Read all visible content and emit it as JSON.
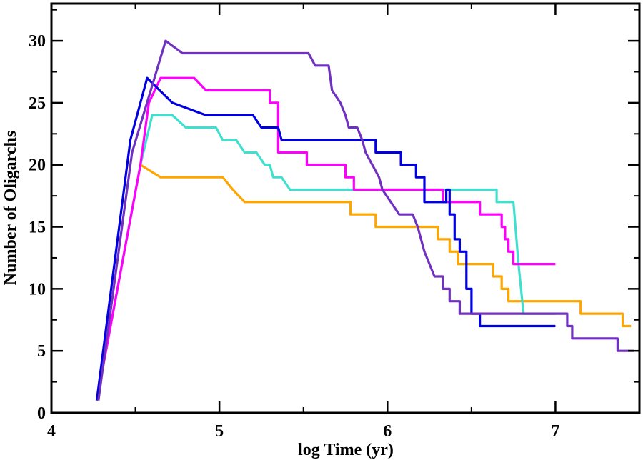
{
  "chart_data": {
    "type": "line",
    "title": "",
    "xlabel": "log Time (yr)",
    "ylabel": "Number of Oligarchs",
    "xlim": [
      4,
      7.5
    ],
    "ylim": [
      0,
      33
    ],
    "grid": false,
    "x_ticks": [
      4,
      5,
      6,
      7
    ],
    "x_tick_labels": [
      "4",
      "5",
      "6",
      "7"
    ],
    "y_ticks": [
      0,
      5,
      10,
      15,
      20,
      25,
      30
    ],
    "y_tick_labels": [
      "0",
      "5",
      "10",
      "15",
      "20",
      "25",
      "30"
    ],
    "series": [
      {
        "name": "orange",
        "color": "#FFA500",
        "points": [
          [
            4.27,
            1
          ],
          [
            4.53,
            20
          ],
          [
            4.65,
            19
          ],
          [
            5.02,
            19
          ],
          [
            5.08,
            18
          ],
          [
            5.15,
            17
          ],
          [
            5.78,
            17
          ],
          [
            5.78,
            16
          ],
          [
            5.93,
            16
          ],
          [
            5.93,
            15
          ],
          [
            6.3,
            15
          ],
          [
            6.3,
            14
          ],
          [
            6.37,
            14
          ],
          [
            6.37,
            13
          ],
          [
            6.42,
            13
          ],
          [
            6.42,
            12
          ],
          [
            6.63,
            12
          ],
          [
            6.63,
            11
          ],
          [
            6.68,
            11
          ],
          [
            6.68,
            10
          ],
          [
            6.72,
            10
          ],
          [
            6.72,
            9
          ],
          [
            7.15,
            9
          ],
          [
            7.15,
            8
          ],
          [
            7.4,
            8
          ],
          [
            7.4,
            7
          ],
          [
            7.45,
            7
          ]
        ]
      },
      {
        "name": "turquoise",
        "color": "#40E0D0",
        "points": [
          [
            4.27,
            1
          ],
          [
            4.53,
            20
          ],
          [
            4.6,
            24
          ],
          [
            4.72,
            24
          ],
          [
            4.8,
            23
          ],
          [
            4.98,
            23
          ],
          [
            5.02,
            22
          ],
          [
            5.1,
            22
          ],
          [
            5.15,
            21
          ],
          [
            5.22,
            21
          ],
          [
            5.27,
            20
          ],
          [
            5.3,
            20
          ],
          [
            5.32,
            19
          ],
          [
            5.37,
            19
          ],
          [
            5.42,
            18
          ],
          [
            6.65,
            18
          ],
          [
            6.65,
            17
          ],
          [
            6.75,
            17
          ],
          [
            6.78,
            12
          ],
          [
            6.81,
            8
          ],
          [
            7.0,
            8
          ]
        ]
      },
      {
        "name": "magenta",
        "color": "#FF00FF",
        "points": [
          [
            4.27,
            1
          ],
          [
            4.53,
            20
          ],
          [
            4.58,
            25
          ],
          [
            4.65,
            27
          ],
          [
            4.85,
            27
          ],
          [
            4.92,
            26
          ],
          [
            5.3,
            26
          ],
          [
            5.3,
            25
          ],
          [
            5.35,
            25
          ],
          [
            5.35,
            21
          ],
          [
            5.52,
            21
          ],
          [
            5.52,
            20
          ],
          [
            5.75,
            20
          ],
          [
            5.75,
            19
          ],
          [
            5.8,
            19
          ],
          [
            5.8,
            18
          ],
          [
            6.33,
            18
          ],
          [
            6.33,
            17
          ],
          [
            6.55,
            17
          ],
          [
            6.55,
            16
          ],
          [
            6.68,
            16
          ],
          [
            6.68,
            15
          ],
          [
            6.7,
            15
          ],
          [
            6.7,
            14
          ],
          [
            6.72,
            14
          ],
          [
            6.72,
            13
          ],
          [
            6.75,
            13
          ],
          [
            6.75,
            12
          ],
          [
            7.0,
            12
          ]
        ]
      },
      {
        "name": "blue",
        "color": "#0000E0",
        "points": [
          [
            4.27,
            1
          ],
          [
            4.47,
            22
          ],
          [
            4.57,
            27
          ],
          [
            4.72,
            25
          ],
          [
            4.92,
            24
          ],
          [
            5.2,
            24
          ],
          [
            5.25,
            23
          ],
          [
            5.35,
            23
          ],
          [
            5.37,
            22
          ],
          [
            5.93,
            22
          ],
          [
            5.93,
            21
          ],
          [
            6.08,
            21
          ],
          [
            6.08,
            20
          ],
          [
            6.17,
            20
          ],
          [
            6.17,
            19
          ],
          [
            6.22,
            19
          ],
          [
            6.22,
            17
          ],
          [
            6.35,
            17
          ],
          [
            6.35,
            18
          ],
          [
            6.37,
            18
          ],
          [
            6.37,
            16
          ],
          [
            6.4,
            16
          ],
          [
            6.4,
            14
          ],
          [
            6.43,
            14
          ],
          [
            6.43,
            13
          ],
          [
            6.47,
            13
          ],
          [
            6.47,
            10
          ],
          [
            6.5,
            10
          ],
          [
            6.5,
            8
          ],
          [
            6.55,
            8
          ],
          [
            6.55,
            7
          ],
          [
            7.0,
            7
          ]
        ]
      },
      {
        "name": "purple",
        "color": "#7030C0",
        "points": [
          [
            4.28,
            1
          ],
          [
            4.37,
            10
          ],
          [
            4.48,
            21
          ],
          [
            4.68,
            30
          ],
          [
            4.78,
            29
          ],
          [
            5.53,
            29
          ],
          [
            5.57,
            28
          ],
          [
            5.65,
            28
          ],
          [
            5.67,
            26
          ],
          [
            5.72,
            25
          ],
          [
            5.75,
            24
          ],
          [
            5.77,
            23
          ],
          [
            5.82,
            23
          ],
          [
            5.85,
            22
          ],
          [
            5.87,
            21
          ],
          [
            5.95,
            19
          ],
          [
            5.97,
            18
          ],
          [
            6.02,
            17
          ],
          [
            6.07,
            16
          ],
          [
            6.15,
            16
          ],
          [
            6.18,
            15
          ],
          [
            6.2,
            14
          ],
          [
            6.22,
            13
          ],
          [
            6.25,
            12
          ],
          [
            6.28,
            11
          ],
          [
            6.33,
            11
          ],
          [
            6.33,
            10
          ],
          [
            6.37,
            10
          ],
          [
            6.37,
            9
          ],
          [
            6.43,
            9
          ],
          [
            6.43,
            8
          ],
          [
            7.0,
            8
          ],
          [
            7.07,
            8
          ],
          [
            7.07,
            7
          ],
          [
            7.1,
            7
          ],
          [
            7.1,
            6
          ],
          [
            7.37,
            6
          ],
          [
            7.37,
            5
          ],
          [
            7.47,
            5
          ]
        ]
      }
    ]
  }
}
